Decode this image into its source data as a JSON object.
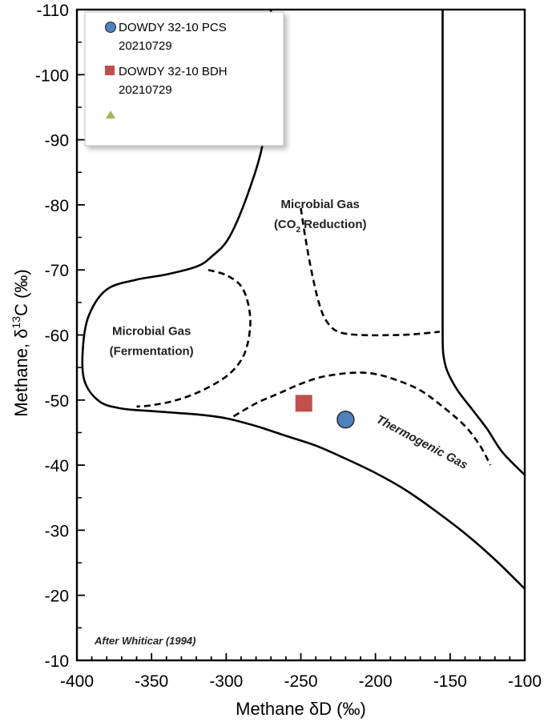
{
  "chart_data": {
    "type": "scatter",
    "xlabel": "Methane δD (‰)",
    "ylabel_parts": {
      "pre": "Methane, δ",
      "sup": "13",
      "post": "C (‰)"
    },
    "xlim": [
      -400,
      -100
    ],
    "ylim": [
      -10,
      -110
    ],
    "x_ticks": [
      -400,
      -350,
      -300,
      -250,
      -200,
      -150,
      -100
    ],
    "y_ticks": [
      -10,
      -20,
      -30,
      -40,
      -50,
      -60,
      -70,
      -80,
      -90,
      -100,
      -110
    ],
    "series": [
      {
        "name": "DOWDY 32-10 PCS",
        "name_line2": "20210729",
        "marker": "circle",
        "color": "#4f81bd",
        "points": [
          {
            "x": -220,
            "y": -47
          }
        ]
      },
      {
        "name": "DOWDY 32-10 BDH",
        "name_line2": "20210729",
        "marker": "square",
        "color": "#c0504d",
        "points": [
          {
            "x": -248,
            "y": -49.5
          }
        ]
      },
      {
        "name": "",
        "marker": "triangle",
        "color": "#9bbb59",
        "points": []
      }
    ],
    "regions": {
      "microbial_co2": {
        "line1": "Microbial Gas",
        "line2_pre": "(CO",
        "line2_sub": "2",
        "line2_post": " Reduction)",
        "at": [
          -237,
          -78.5
        ]
      },
      "microbial_ferm": {
        "line1": "Microbial Gas",
        "line2": "(Fermentation)",
        "at": [
          -350,
          -59
        ]
      },
      "thermogenic": {
        "label": "Thermogenic Gas",
        "at": [
          -170,
          -43
        ],
        "rotate": 28
      }
    },
    "boundaries": {
      "solid_left": [
        [
          -270,
          -110
        ],
        [
          -271,
          -100
        ],
        [
          -275,
          -90
        ],
        [
          -285,
          -82
        ],
        [
          -298,
          -75
        ],
        [
          -310,
          -72
        ],
        [
          -320,
          -70.5
        ],
        [
          -340,
          -69.3
        ],
        [
          -360,
          -68.5
        ],
        [
          -380,
          -67
        ],
        [
          -392,
          -63
        ],
        [
          -396,
          -58
        ],
        [
          -395,
          -53
        ],
        [
          -385,
          -49.8
        ],
        [
          -370,
          -48.7
        ],
        [
          -350,
          -48.3
        ],
        [
          -320,
          -47.8
        ],
        [
          -300,
          -47.2
        ],
        [
          -280,
          -46
        ],
        [
          -260,
          -44.5
        ],
        [
          -240,
          -43
        ],
        [
          -220,
          -41
        ],
        [
          -200,
          -38.8
        ],
        [
          -180,
          -36.2
        ],
        [
          -160,
          -33
        ],
        [
          -140,
          -29.5
        ],
        [
          -120,
          -25.5
        ],
        [
          -100,
          -21
        ]
      ],
      "solid_right": [
        [
          -155,
          -110
        ],
        [
          -155,
          -90
        ],
        [
          -155,
          -70
        ],
        [
          -155,
          -60
        ],
        [
          -154.5,
          -57
        ],
        [
          -152,
          -54.5
        ],
        [
          -145,
          -51.5
        ],
        [
          -135,
          -48.5
        ],
        [
          -125,
          -45.5
        ],
        [
          -115,
          -42
        ],
        [
          -100,
          -38.5
        ]
      ],
      "dashed_ferm": [
        [
          -312,
          -70
        ],
        [
          -300,
          -69.2
        ],
        [
          -290,
          -67.5
        ],
        [
          -285,
          -64.5
        ],
        [
          -284,
          -61
        ],
        [
          -288,
          -57
        ],
        [
          -298,
          -54
        ],
        [
          -315,
          -51.6
        ],
        [
          -333,
          -50
        ],
        [
          -350,
          -49.2
        ],
        [
          -360,
          -49
        ]
      ],
      "dashed_co2": [
        [
          -250,
          -79.5
        ],
        [
          -247,
          -75
        ],
        [
          -243,
          -70
        ],
        [
          -238,
          -65
        ],
        [
          -233,
          -62.2
        ],
        [
          -225,
          -60.5
        ],
        [
          -210,
          -60
        ],
        [
          -185,
          -60
        ],
        [
          -170,
          -60.2
        ],
        [
          -157,
          -60.5
        ]
      ],
      "dashed_thermo": [
        [
          -295,
          -47.5
        ],
        [
          -280,
          -49.5
        ],
        [
          -265,
          -51
        ],
        [
          -250,
          -52.5
        ],
        [
          -235,
          -53.6
        ],
        [
          -215,
          -54.2
        ],
        [
          -200,
          -54
        ],
        [
          -185,
          -53
        ],
        [
          -170,
          -51.5
        ],
        [
          -155,
          -49
        ],
        [
          -140,
          -46
        ],
        [
          -130,
          -43
        ],
        [
          -123,
          -40
        ]
      ]
    },
    "annotation": "After Whiticar (1994)",
    "grid": false,
    "legend_position": "top-left"
  }
}
